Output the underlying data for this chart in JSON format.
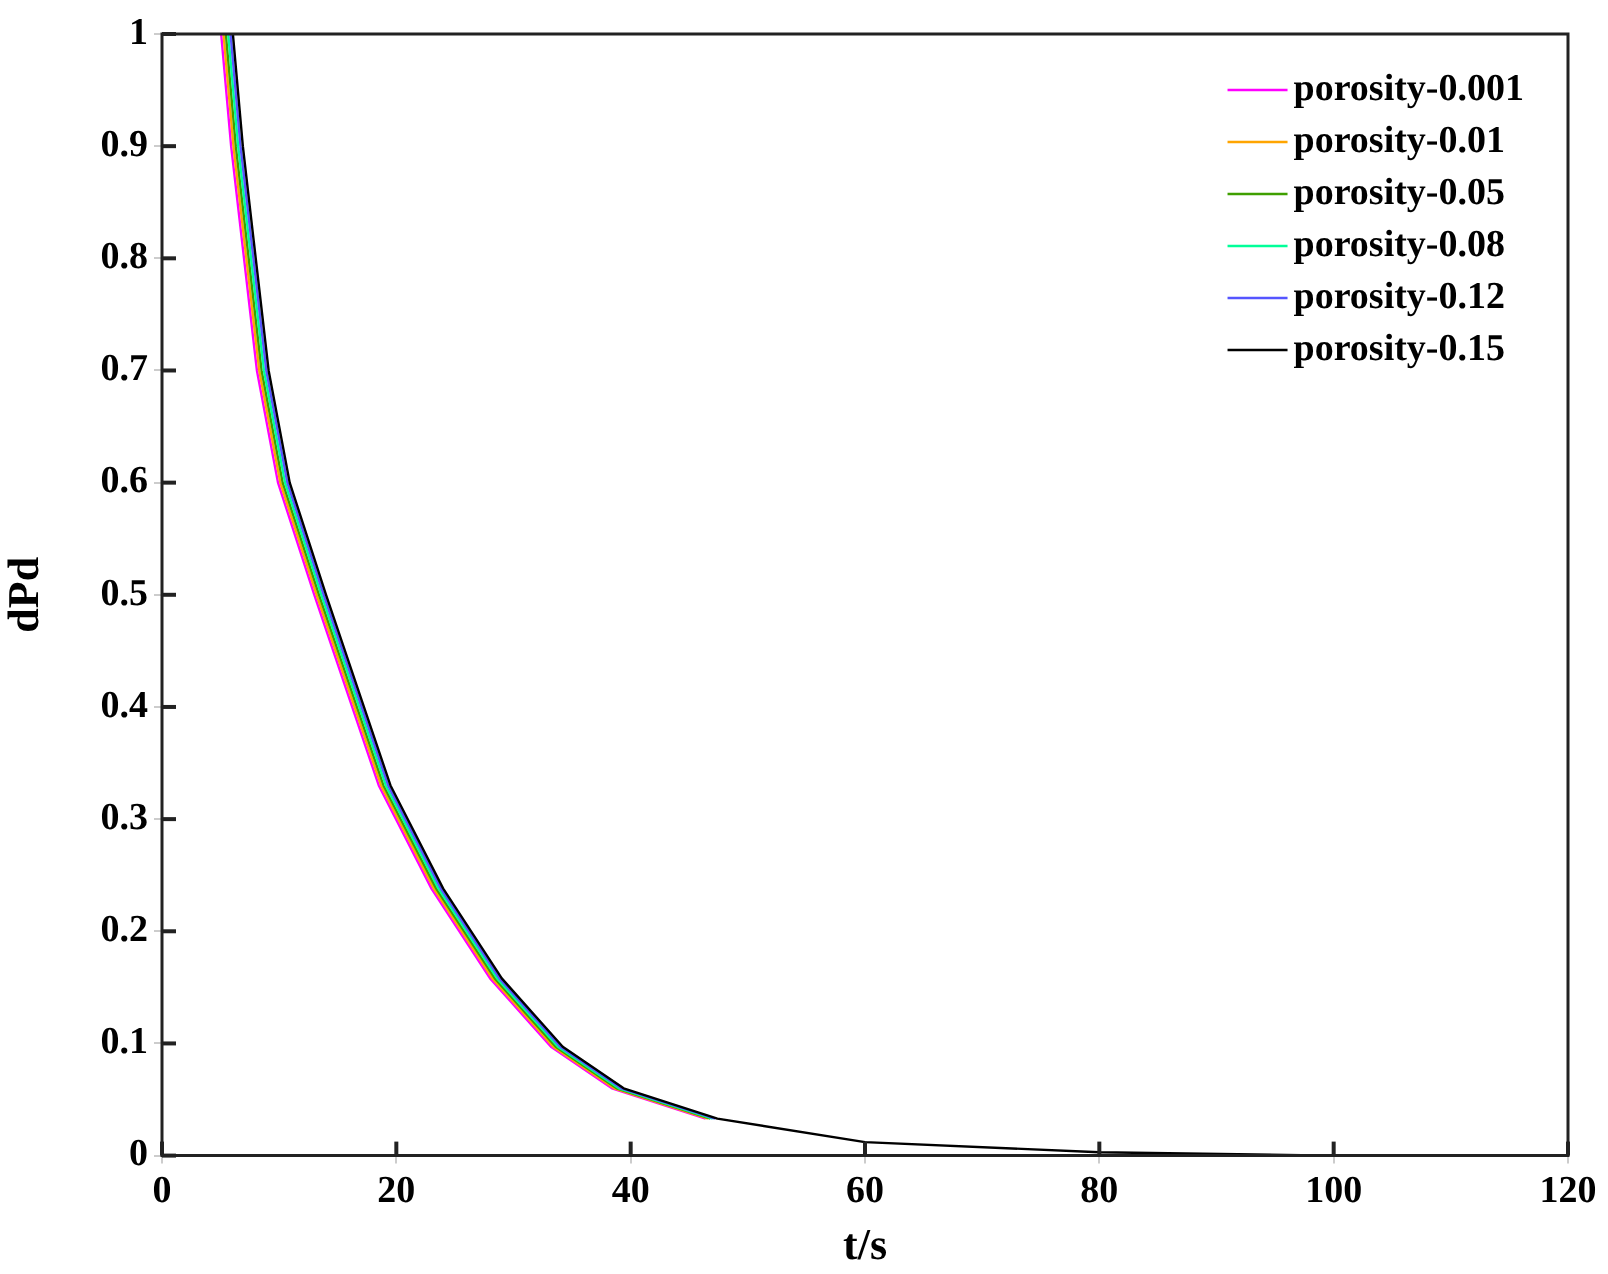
{
  "chart_data": {
    "type": "line",
    "xlabel": "t/s",
    "ylabel": "dPd",
    "x": [
      6.05,
      6.9,
      8.0,
      9.1,
      10.9,
      14.0,
      19.5,
      24,
      29,
      34.2,
      39.4,
      47.4,
      60,
      80,
      100,
      109
    ],
    "series": [
      {
        "name": "porosity-0.001",
        "color": "#ff00ff",
        "x": [
          5.05,
          5.9,
          7.0,
          8.1,
          9.9,
          13.0,
          18.5,
          23,
          28,
          33.2,
          38.4,
          46.4
        ],
        "values": [
          1,
          0.9,
          0.8,
          0.7,
          0.6,
          0.5,
          0.33,
          0.238,
          0.158,
          0.097,
          0.06,
          0.033
        ]
      },
      {
        "name": "porosity-0.01",
        "color": "#ffa500",
        "x": [
          5.25,
          6.1,
          7.2,
          8.3,
          10.1,
          13.2,
          18.7,
          23.2,
          28.2,
          33.4,
          38.6,
          46.6
        ],
        "values": [
          1,
          0.9,
          0.8,
          0.7,
          0.6,
          0.5,
          0.33,
          0.238,
          0.158,
          0.097,
          0.06,
          0.033
        ]
      },
      {
        "name": "porosity-0.05",
        "color": "#3f9f00",
        "x": [
          5.45,
          6.3,
          7.4,
          8.5,
          10.3,
          13.4,
          18.9,
          23.4,
          28.4,
          33.6,
          38.8,
          46.8
        ],
        "values": [
          1,
          0.9,
          0.8,
          0.7,
          0.6,
          0.5,
          0.33,
          0.238,
          0.158,
          0.097,
          0.06,
          0.033
        ]
      },
      {
        "name": "porosity-0.08",
        "color": "#00ff99",
        "x": [
          5.65,
          6.5,
          7.6,
          8.7,
          10.5,
          13.6,
          19.1,
          23.6,
          28.6,
          33.8,
          39.0,
          47.0
        ],
        "values": [
          1,
          0.9,
          0.8,
          0.7,
          0.6,
          0.5,
          0.33,
          0.238,
          0.158,
          0.097,
          0.06,
          0.033
        ]
      },
      {
        "name": "porosity-0.12",
        "color": "#5555ff",
        "x": [
          5.85,
          6.7,
          7.8,
          8.9,
          10.7,
          13.8,
          19.3,
          23.8,
          28.8,
          34.0,
          39.2,
          47.2
        ],
        "values": [
          1,
          0.9,
          0.8,
          0.7,
          0.6,
          0.5,
          0.33,
          0.238,
          0.158,
          0.097,
          0.06,
          0.033
        ]
      },
      {
        "name": "porosity-0.15",
        "color": "#000000",
        "values": [
          1,
          0.9,
          0.8,
          0.7,
          0.6,
          0.5,
          0.33,
          0.238,
          0.158,
          0.097,
          0.06,
          0.033,
          0.012,
          0.003,
          0,
          0
        ]
      }
    ],
    "xlim": [
      0,
      120
    ],
    "xticks": [
      0,
      20,
      40,
      60,
      80,
      100,
      120
    ],
    "ylim": [
      0,
      1
    ],
    "yticks": [
      0,
      0.1,
      0.2,
      0.3,
      0.4,
      0.5,
      0.6,
      0.7,
      0.8,
      0.9,
      1
    ],
    "grid": false,
    "legend": "top right",
    "marker": "none",
    "line_style": "solid"
  }
}
